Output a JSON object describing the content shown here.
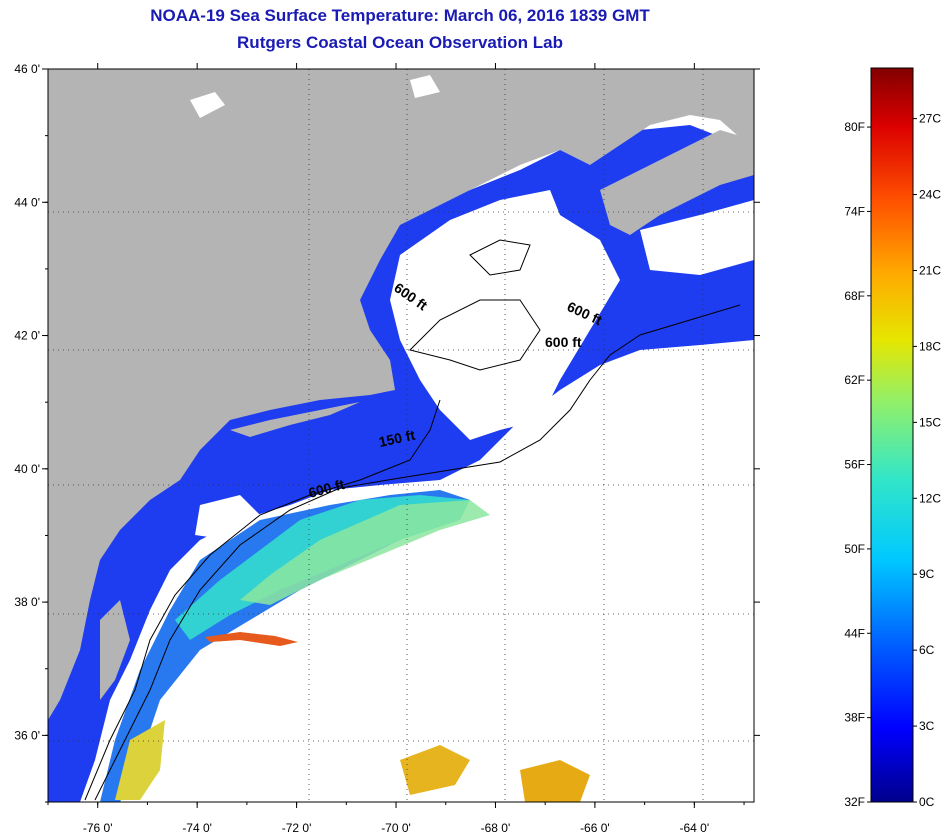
{
  "title": {
    "line1": "NOAA-19 Sea Surface Temperature:  March 06, 2016 1839 GMT",
    "line2": "Rutgers Coastal Ocean Observation Lab"
  },
  "map": {
    "lon_labels": [
      "-76 0'",
      "-74 0'",
      "-72 0'",
      "-70 0'",
      "-68 0'",
      "-66 0'",
      "-64 0'"
    ],
    "lon_values": [
      -76,
      -74,
      -72,
      -70,
      -68,
      -66,
      -64
    ],
    "lat_labels": [
      "46 0'",
      "44 0'",
      "42 0'",
      "40 0'",
      "38 0'",
      "36 0'"
    ],
    "lat_values": [
      46,
      44,
      42,
      40,
      38,
      36
    ],
    "lon_range": [
      -77,
      -62.8
    ],
    "lat_range": [
      35,
      46
    ],
    "contour_labels": [
      "600 ft",
      "600 ft",
      "600 ft",
      "150 ft",
      "600 ft"
    ],
    "colors": {
      "land": "#b4b4b4",
      "cloud": "#ffffff",
      "cold_water": "#1e3cf0"
    }
  },
  "colorbar": {
    "fahrenheit_labels": [
      "80F",
      "74F",
      "68F",
      "62F",
      "56F",
      "50F",
      "44F",
      "38F",
      "32F"
    ],
    "fahrenheit_values": [
      80,
      74,
      68,
      62,
      56,
      50,
      44,
      38,
      32
    ],
    "celsius_labels": [
      "27C",
      "24C",
      "21C",
      "18C",
      "15C",
      "12C",
      "9C",
      "6C",
      "3C",
      "0C"
    ],
    "celsius_values": [
      27,
      24,
      21,
      18,
      15,
      12,
      9,
      6,
      3,
      0
    ],
    "range_c": [
      0,
      29
    ],
    "colors": [
      "#00008c",
      "#0000ff",
      "#0064ff",
      "#00c8ff",
      "#32e6c8",
      "#96f064",
      "#e6e600",
      "#ffaa00",
      "#ff5000",
      "#dc0000",
      "#820000"
    ]
  }
}
